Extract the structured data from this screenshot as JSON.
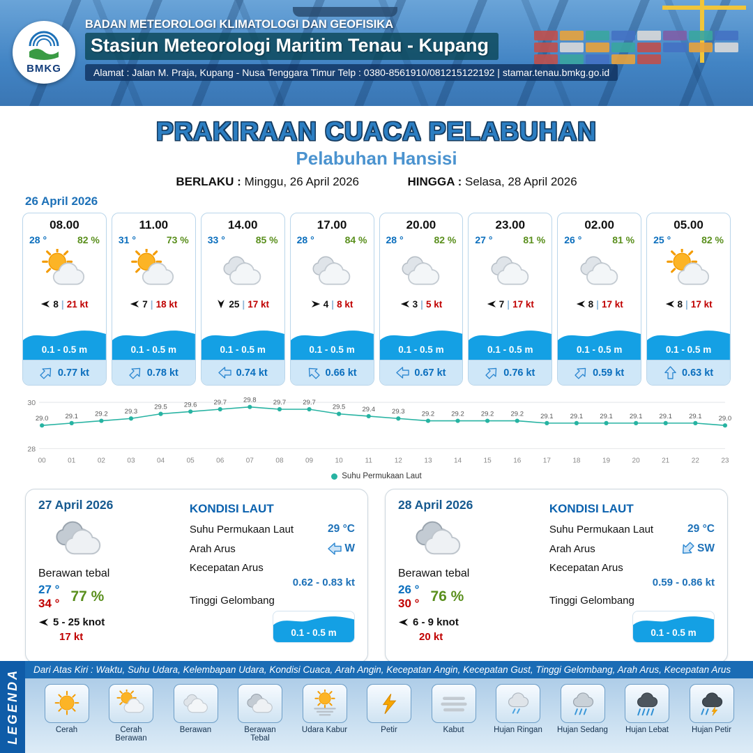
{
  "header": {
    "org": "BADAN METEOROLOGI KLIMATOLOGI DAN GEOFISIKA",
    "station": "Stasiun Meteorologi Maritim Tenau - Kupang",
    "address": "Alamat : Jalan M. Praja, Kupang - Nusa Tenggara Timur Telp : 0380-8561910/081215122192  | stamar.tenau.bmkg.go.id",
    "logo_text": "BMKG"
  },
  "title": {
    "main": "PRAKIRAAN CUACA PELABUHAN",
    "subtitle": "Pelabuhan Hansisi",
    "valid_label": "BERLAKU :",
    "valid_value": "Minggu, 26 April 2026",
    "until_label": "HINGGA :",
    "until_value": "Selasa, 28 April 2026"
  },
  "forecast_date": "26 April 2026",
  "forecast_cards": [
    {
      "time": "08.00",
      "temp": "28 °",
      "humidity": "82 %",
      "icon": "cerah-berawan",
      "wind_dir": "W",
      "wind_speed": "8",
      "gust": "21 kt",
      "wave": "0.1 - 0.5 m",
      "current_dir": "NE",
      "current": "0.77 kt"
    },
    {
      "time": "11.00",
      "temp": "31 °",
      "humidity": "73 %",
      "icon": "cerah-berawan",
      "wind_dir": "W",
      "wind_speed": "7",
      "gust": "18 kt",
      "wave": "0.1 - 0.5 m",
      "current_dir": "NE",
      "current": "0.78 kt"
    },
    {
      "time": "14.00",
      "temp": "33 °",
      "humidity": "85 %",
      "icon": "berawan",
      "wind_dir": "S",
      "wind_speed": "25",
      "gust": "17 kt",
      "wave": "0.1 - 0.5 m",
      "current_dir": "W",
      "current": "0.74 kt"
    },
    {
      "time": "17.00",
      "temp": "28 °",
      "humidity": "84 %",
      "icon": "berawan",
      "wind_dir": "E",
      "wind_speed": "4",
      "gust": "8 kt",
      "wave": "0.1 - 0.5 m",
      "current_dir": "NW",
      "current": "0.66 kt"
    },
    {
      "time": "20.00",
      "temp": "28 °",
      "humidity": "82 %",
      "icon": "berawan",
      "wind_dir": "W",
      "wind_speed": "3",
      "gust": "5 kt",
      "wave": "0.1 - 0.5 m",
      "current_dir": "W",
      "current": "0.67 kt"
    },
    {
      "time": "23.00",
      "temp": "27 °",
      "humidity": "81 %",
      "icon": "berawan",
      "wind_dir": "W",
      "wind_speed": "7",
      "gust": "17 kt",
      "wave": "0.1 - 0.5 m",
      "current_dir": "NE",
      "current": "0.76 kt"
    },
    {
      "time": "02.00",
      "temp": "26 °",
      "humidity": "81 %",
      "icon": "berawan",
      "wind_dir": "W",
      "wind_speed": "8",
      "gust": "17 kt",
      "wave": "0.1 - 0.5 m",
      "current_dir": "NE",
      "current": "0.59 kt"
    },
    {
      "time": "05.00",
      "temp": "25 °",
      "humidity": "82 %",
      "icon": "cerah-berawan",
      "wind_dir": "W",
      "wind_speed": "8",
      "gust": "17 kt",
      "wave": "0.1 - 0.5 m",
      "current_dir": "N",
      "current": "0.63 kt"
    }
  ],
  "chart_data": {
    "type": "line",
    "series_name": "Suhu Permukaan Laut",
    "x": [
      "00",
      "01",
      "02",
      "03",
      "04",
      "05",
      "06",
      "07",
      "08",
      "09",
      "10",
      "11",
      "12",
      "13",
      "14",
      "15",
      "16",
      "17",
      "18",
      "19",
      "20",
      "21",
      "22",
      "23"
    ],
    "values": [
      29.0,
      29.1,
      29.2,
      29.3,
      29.5,
      29.6,
      29.7,
      29.8,
      29.7,
      29.7,
      29.5,
      29.4,
      29.3,
      29.2,
      29.2,
      29.2,
      29.2,
      29.1,
      29.1,
      29.1,
      29.1,
      29.1,
      29.1,
      29.0
    ],
    "ylim": [
      28,
      30
    ],
    "line_color": "#27b3a2",
    "legend_position": "bottom"
  },
  "sea_labels": {
    "title": "KONDISI LAUT",
    "sst": "Suhu Permukaan Laut",
    "dir": "Arah Arus",
    "speed": "Kecepatan Arus",
    "wave": "Tinggi Gelombang"
  },
  "day_cards": [
    {
      "date": "27 April 2026",
      "icon": "berawan-tebal",
      "condition": "Berawan tebal",
      "temp_min": "27 °",
      "temp_max": "34 °",
      "humidity": "77 %",
      "wind_dir": "W",
      "wind_range": "5 - 25 knot",
      "gust": "17 kt",
      "sea": {
        "sst": "29 °C",
        "current_dir": "W",
        "current_speed": "0.62 - 0.83 kt",
        "wave": "0.1 - 0.5 m"
      }
    },
    {
      "date": "28 April 2026",
      "icon": "berawan-tebal",
      "condition": "Berawan tebal",
      "temp_min": "26 °",
      "temp_max": "30 °",
      "humidity": "76 %",
      "wind_dir": "W",
      "wind_range": "6 - 9 knot",
      "gust": "20 kt",
      "sea": {
        "sst": "29 °C",
        "current_dir": "SW",
        "current_speed": "0.59 - 0.86 kt",
        "wave": "0.1 - 0.5 m"
      }
    }
  ],
  "legend": {
    "title": "LEGENDA",
    "description": "Dari Atas Kiri : Waktu, Suhu Udara, Kelembapan Udara, Kondisi Cuaca, Arah Angin, Kecepatan Angin, Kecepatan Gust, Tinggi Gelombang, Arah Arus, Kecepatan Arus",
    "items": [
      {
        "label": "Cerah",
        "icon": "cerah"
      },
      {
        "label": "Cerah Berawan",
        "icon": "cerah-berawan"
      },
      {
        "label": "Berawan",
        "icon": "berawan"
      },
      {
        "label": "Berawan Tebal",
        "icon": "berawan-tebal"
      },
      {
        "label": "Udara Kabur",
        "icon": "udara-kabur"
      },
      {
        "label": "Petir",
        "icon": "petir"
      },
      {
        "label": "Kabut",
        "icon": "kabut"
      },
      {
        "label": "Hujan Ringan",
        "icon": "hujan-ringan"
      },
      {
        "label": "Hujan Sedang",
        "icon": "hujan-sedang"
      },
      {
        "label": "Hujan Lebat",
        "icon": "hujan-lebat"
      },
      {
        "label": "Hujan Petir",
        "icon": "hujan-petir"
      }
    ]
  },
  "colors": {
    "accent_blue": "#1d71b8",
    "temp_blue": "#0a6ebd",
    "humidity_green": "#5a8f1d",
    "gust_red": "#c00000",
    "wave_blue": "#14a0e4",
    "chart_teal": "#27b3a2"
  }
}
